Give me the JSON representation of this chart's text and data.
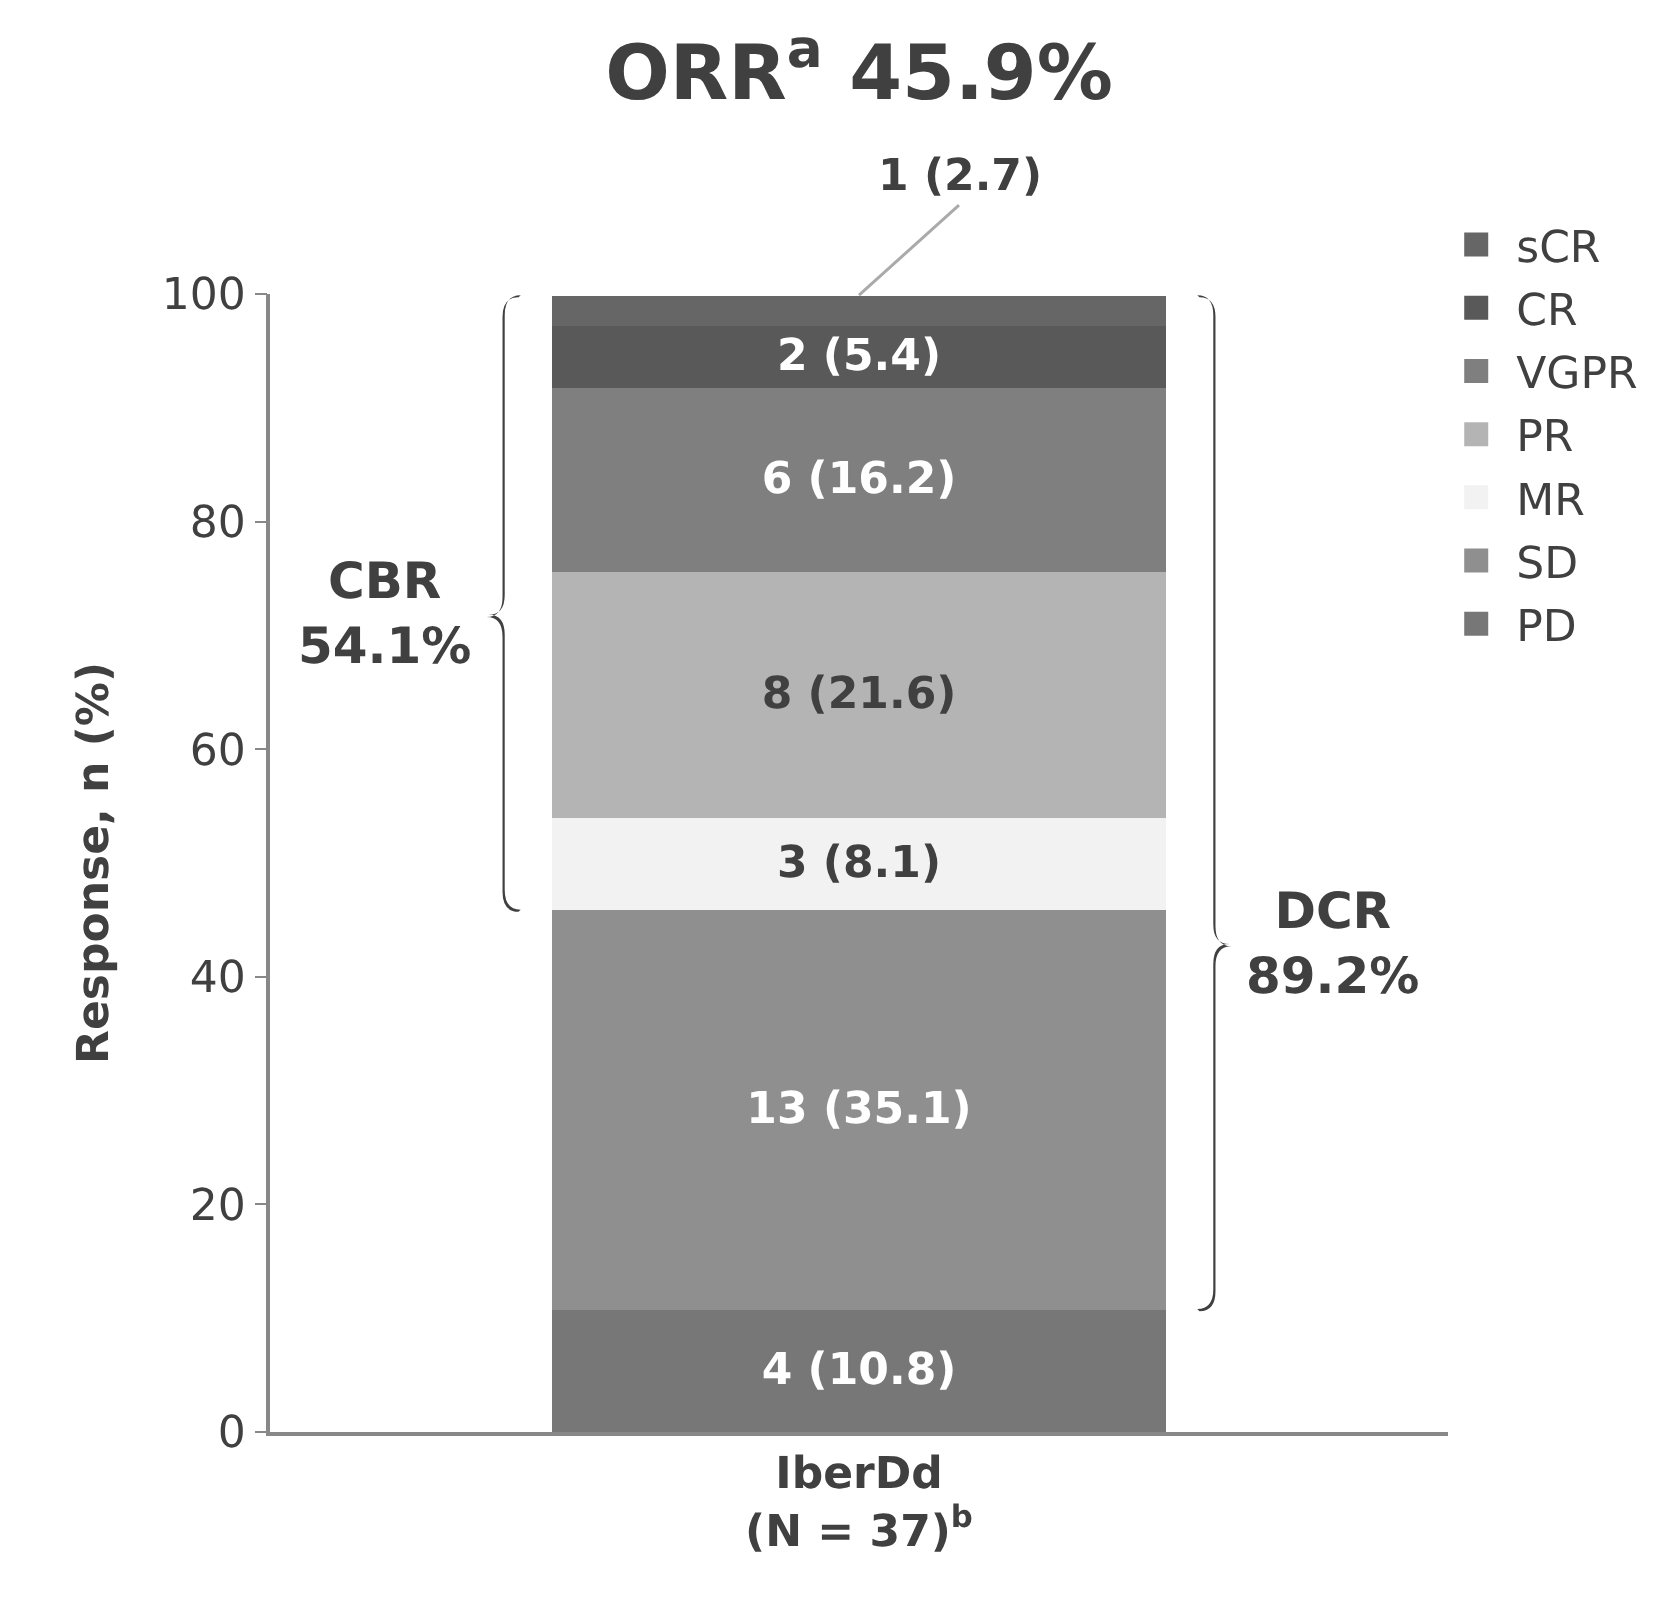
{
  "chart_data": {
    "type": "bar",
    "title": "ORR$^{a}$ 45.9%",
    "ylabel": "Response, n (%)",
    "categories": [
      "IberDd\n(N = 37)$^{b}$"
    ],
    "stacked": true,
    "series": [
      {
        "name": "PD",
        "color": "#777777",
        "values": [
          10.8
        ],
        "value_labels": [
          "4 (10.8)"
        ]
      },
      {
        "name": "SD",
        "color": "#8f8f8f",
        "values": [
          35.1
        ],
        "value_labels": [
          "13 (35.1)"
        ]
      },
      {
        "name": "MR",
        "color": "#f2f2f2",
        "values": [
          8.1
        ],
        "value_labels": [
          "3 (8.1)"
        ]
      },
      {
        "name": "PR",
        "color": "#b4b4b4",
        "values": [
          21.6
        ],
        "value_labels": [
          "8 (21.6)"
        ]
      },
      {
        "name": "VGPR",
        "color": "#7f7f7f",
        "values": [
          16.2
        ],
        "value_labels": [
          "6 (16.2)"
        ]
      },
      {
        "name": "CR",
        "color": "#595959",
        "values": [
          5.4
        ],
        "value_labels": [
          "2 (5.4)"
        ]
      },
      {
        "name": "sCR",
        "color": "#666666",
        "values": [
          2.7
        ],
        "value_labels": [
          "1 (2.7)"
        ]
      }
    ],
    "ylim": [
      0,
      100
    ],
    "yticks": [
      0,
      20,
      40,
      60,
      80,
      100
    ],
    "grid": false,
    "legend": "top right",
    "annotations": [
      "CBR\n54.1%",
      "DCR\n89.2%"
    ]
  }
}
